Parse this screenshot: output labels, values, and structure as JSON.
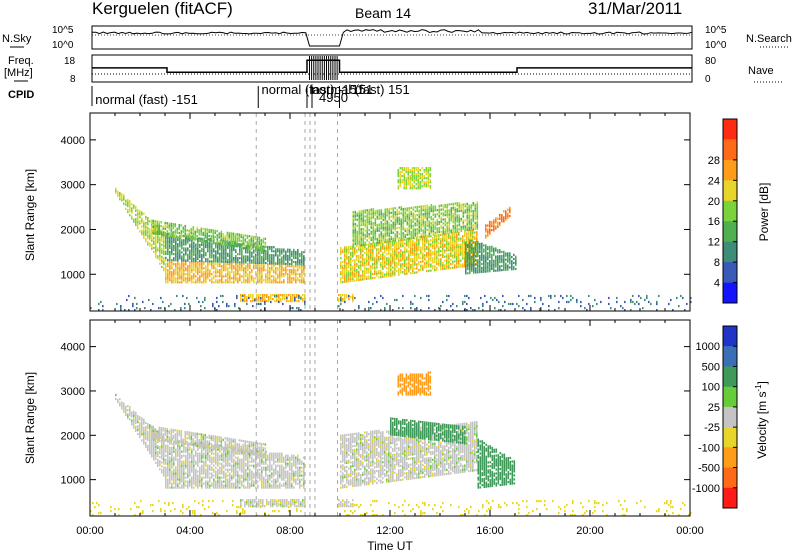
{
  "header": {
    "title_left": "Kerguelen (fitACF)",
    "title_center": "Beam 14",
    "title_right": "31/Mar/2011"
  },
  "top_panels": {
    "nsky_label": "N.Sky",
    "nsky_ticks": [
      "10^5",
      "10^0"
    ],
    "nsearch_label": "N.Search",
    "nsearch_ticks": [
      "10^5",
      "10^0"
    ],
    "freq_label": "Freq.",
    "freq_unit": "[MHz]",
    "freq_ticks": [
      "18",
      "8"
    ],
    "nave_label": "Nave",
    "nave_ticks": [
      "80",
      "0"
    ],
    "cpid_label": "CPID",
    "cpid_segments": [
      {
        "t": 0.05,
        "text": "normal (fast) -151"
      },
      {
        "t": 6.7,
        "text": "normal (fast) -151"
      },
      {
        "t": 8.7,
        "text": "normal (fast) 151"
      },
      {
        "t": 9.0,
        "text": "4950"
      },
      {
        "t": 10.3,
        "text": "151"
      }
    ],
    "freq_trace": [
      [
        0,
        13.5
      ],
      [
        3.0,
        13.5
      ],
      [
        3.0,
        11.5
      ],
      [
        8.6,
        11.5
      ],
      [
        8.6,
        17
      ],
      [
        9.9,
        17
      ],
      [
        9.9,
        11.5
      ],
      [
        17.0,
        11.5
      ],
      [
        17.0,
        13.5
      ],
      [
        24,
        13.5
      ]
    ],
    "nsky_level": 0.55,
    "nsearch_level": 0.45
  },
  "chart_data": [
    {
      "type": "heatmap",
      "panel": "power",
      "ylabel": "Slant Range [km]",
      "xlabel": "",
      "xlim": [
        0,
        24
      ],
      "ylim": [
        180,
        4600
      ],
      "yticks": [
        "1000",
        "2000",
        "3000",
        "4000"
      ],
      "colorbar_label": "Power [dB]",
      "colorbar_ticks": [
        "4",
        "8",
        "12",
        "16",
        "20",
        "24",
        "28"
      ],
      "colorbar_colors": [
        "#1414ff",
        "#3a5ab8",
        "#3f8c78",
        "#4fb050",
        "#7ad33a",
        "#e8d52a",
        "#ff9c1a",
        "#ff6a1a",
        "#ff2a12"
      ],
      "regions": [
        {
          "t0": 1.0,
          "t1": 3.0,
          "r0_start": 2800,
          "r0_end": 1000,
          "r1_start": 2900,
          "r1_end": 1900,
          "level": 20
        },
        {
          "t0": 3.0,
          "t1": 8.6,
          "r0_start": 800,
          "r0_end": 800,
          "r1_start": 1300,
          "r1_end": 1200,
          "level": 24
        },
        {
          "t0": 3.0,
          "t1": 8.6,
          "r0_start": 1300,
          "r0_end": 1200,
          "r1_start": 1900,
          "r1_end": 1500,
          "level": 12
        },
        {
          "t0": 2.5,
          "t1": 7.0,
          "r0_start": 1900,
          "r0_end": 1500,
          "r1_start": 2200,
          "r1_end": 1800,
          "level": 17
        },
        {
          "t0": 10.0,
          "t1": 15.5,
          "r0_start": 800,
          "r0_end": 1200,
          "r1_start": 1600,
          "r1_end": 2000,
          "level": 22
        },
        {
          "t0": 10.5,
          "t1": 15.5,
          "r0_start": 1600,
          "r0_end": 2000,
          "r1_start": 2400,
          "r1_end": 2600,
          "level": 18
        },
        {
          "t0": 15.0,
          "t1": 17.0,
          "r0_start": 1000,
          "r0_end": 1100,
          "r1_start": 1800,
          "r1_end": 1400,
          "level": 12
        },
        {
          "t0": 15.8,
          "t1": 16.8,
          "r0_start": 1800,
          "r0_end": 2300,
          "r1_start": 2100,
          "r1_end": 2500,
          "level": 28
        },
        {
          "t0": 12.3,
          "t1": 13.6,
          "r0_start": 2900,
          "r0_end": 2900,
          "r1_start": 3350,
          "r1_end": 3400,
          "level": 20
        },
        {
          "t0": 6.0,
          "t1": 10.5,
          "r0_start": 380,
          "r0_end": 380,
          "r1_start": 520,
          "r1_end": 520,
          "level": 24
        },
        {
          "t0": 0.0,
          "t1": 24.0,
          "r0_start": 180,
          "r0_end": 180,
          "r1_start": 500,
          "r1_end": 500,
          "level": 8,
          "sparse": true
        }
      ]
    },
    {
      "type": "heatmap",
      "panel": "velocity",
      "ylabel": "Slant Range [km]",
      "xlabel": "Time UT",
      "xlim": [
        0,
        24
      ],
      "ylim": [
        180,
        4600
      ],
      "xticks": [
        "00:00",
        "04:00",
        "08:00",
        "12:00",
        "16:00",
        "20:00",
        "00:00"
      ],
      "yticks": [
        "1000",
        "2000",
        "3000",
        "4000"
      ],
      "colorbar_label": "Velocity [m s",
      "colorbar_label_sup": "-1",
      "colorbar_label_end": "]",
      "colorbar_ticks": [
        "1000",
        "500",
        "100",
        "25",
        "-25",
        "-100",
        "-500",
        "-1000"
      ],
      "colorbar_colors": [
        "#2035c8",
        "#3a6fb8",
        "#3f9a5a",
        "#66cc3a",
        "#c4c4c4",
        "#e8d52a",
        "#ff9c1a",
        "#ff6a1a",
        "#ff1a1a"
      ],
      "regions": [
        {
          "t0": 1.0,
          "t1": 3.0,
          "r0_start": 2800,
          "r0_end": 1000,
          "r1_start": 2900,
          "r1_end": 1900,
          "level": 0
        },
        {
          "t0": 3.0,
          "t1": 8.6,
          "r0_start": 800,
          "r0_end": 800,
          "r1_start": 1900,
          "r1_end": 1500,
          "level": 0
        },
        {
          "t0": 2.5,
          "t1": 7.0,
          "r0_start": 1900,
          "r0_end": 1500,
          "r1_start": 2200,
          "r1_end": 1800,
          "level": 0
        },
        {
          "t0": 10.0,
          "t1": 15.5,
          "r0_start": 800,
          "r0_end": 1200,
          "r1_start": 2000,
          "r1_end": 2300,
          "level": 0
        },
        {
          "t0": 15.5,
          "t1": 17.0,
          "r0_start": 800,
          "r0_end": 900,
          "r1_start": 1900,
          "r1_end": 1400,
          "level": 150
        },
        {
          "t0": 12.3,
          "t1": 13.6,
          "r0_start": 2900,
          "r0_end": 2900,
          "r1_start": 3350,
          "r1_end": 3400,
          "level": -300
        },
        {
          "t0": 12.0,
          "t1": 15.0,
          "r0_start": 2000,
          "r0_end": 1800,
          "r1_start": 2400,
          "r1_end": 2200,
          "level": 200
        },
        {
          "t0": 6.0,
          "t1": 10.5,
          "r0_start": 380,
          "r0_end": 380,
          "r1_start": 520,
          "r1_end": 520,
          "level": 0
        },
        {
          "t0": 0.0,
          "t1": 24.0,
          "r0_start": 180,
          "r0_end": 180,
          "r1_start": 500,
          "r1_end": 500,
          "level": -60,
          "sparse": true
        }
      ]
    }
  ]
}
